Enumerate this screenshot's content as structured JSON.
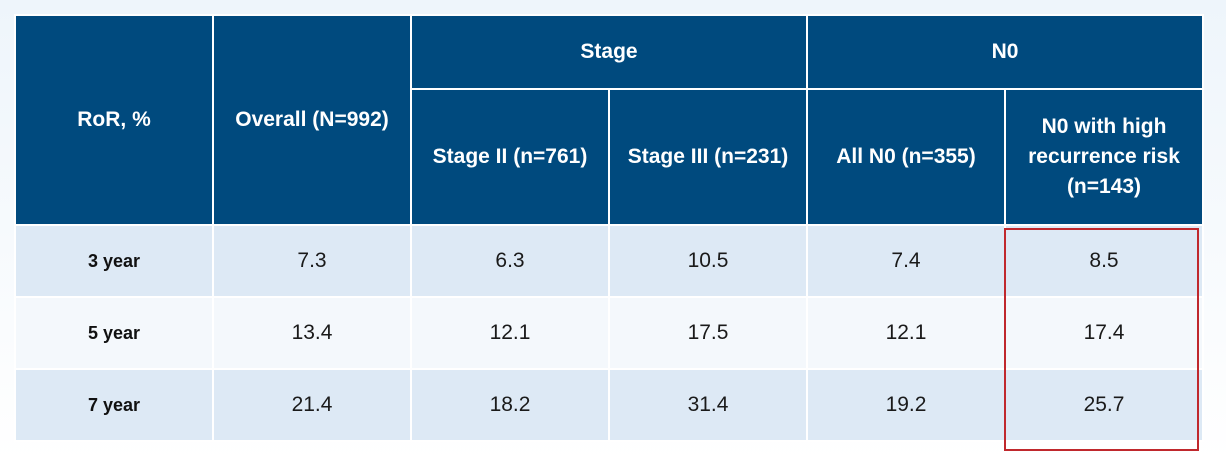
{
  "table": {
    "corner_label": "RoR, %",
    "columns": {
      "overall": [
        "Overall",
        "(N=992)"
      ],
      "stage_group": "Stage",
      "n0_group": "N0",
      "stage2": [
        "Stage II",
        "(n=761)"
      ],
      "stage3": [
        "Stage III",
        "(n=231)"
      ],
      "all_n0": [
        "All N0",
        "(n=355)"
      ],
      "n0_high": [
        "N0 with high",
        "recurrence risk",
        "(n=143)"
      ]
    },
    "rows": [
      {
        "label": "3 year",
        "values": [
          "7.3",
          "6.3",
          "10.5",
          "7.4",
          "8.5"
        ]
      },
      {
        "label": "5 year",
        "values": [
          "13.4",
          "12.1",
          "17.5",
          "12.1",
          "17.4"
        ]
      },
      {
        "label": "7 year",
        "values": [
          "21.4",
          "18.2",
          "31.4",
          "19.2",
          "25.7"
        ]
      }
    ],
    "colors": {
      "header_bg": "#004a7e",
      "row_alt_bg": "#dde9f5",
      "row_bg": "#f4f8fc",
      "highlight_border": "#c0282d"
    }
  }
}
